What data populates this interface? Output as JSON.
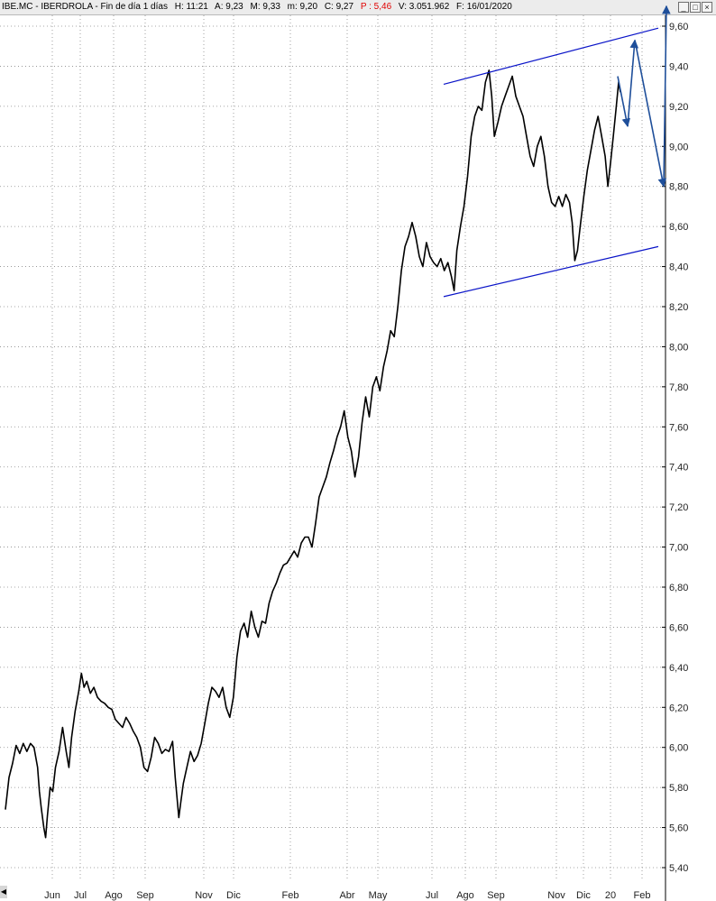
{
  "header": {
    "symbol": "IBE.MC - IBERDROLA - Fin de día 1 días",
    "high": "H: 11:21",
    "open": "A: 9,23",
    "max": "M: 9,33",
    "min": "m: 9,20",
    "close": "C: 9,27",
    "pct": "P : 5,46",
    "volume": "V: 3.051.962",
    "date": "F: 16/01/2020",
    "pct_color": "#e00000"
  },
  "window_buttons": {
    "minimize": "_",
    "restore": "□",
    "close": "×"
  },
  "scroll_arrow": "◀",
  "chart_data": {
    "type": "line",
    "title": "",
    "xlabel": "",
    "ylabel": "",
    "ylim": [
      5.33,
      9.7
    ],
    "y_ticks": [
      "9,60",
      "9,40",
      "9,20",
      "9,00",
      "8,80",
      "8,60",
      "8,40",
      "8,20",
      "8,00",
      "7,80",
      "7,60",
      "7,40",
      "7,20",
      "7,00",
      "6,80",
      "6,60",
      "6,40",
      "6,20",
      "6,00",
      "5,80",
      "5,60",
      "5,40"
    ],
    "x_ticks": [
      "Jun",
      "Jul",
      "Ago",
      "Sep",
      "Nov",
      "Dic",
      "Feb",
      "Abr",
      "May",
      "Jul",
      "Ago",
      "Sep",
      "Nov",
      "Dic",
      "20",
      "Feb"
    ],
    "grid": true,
    "series": [
      {
        "values": [
          [
            0,
            5.69
          ],
          [
            4,
            5.85
          ],
          [
            8,
            5.92
          ],
          [
            12,
            6.01
          ],
          [
            16,
            5.97
          ],
          [
            20,
            6.02
          ],
          [
            24,
            5.98
          ],
          [
            28,
            6.02
          ],
          [
            32,
            6.0
          ],
          [
            36,
            5.9
          ],
          [
            38,
            5.78
          ],
          [
            40,
            5.7
          ],
          [
            43,
            5.6
          ],
          [
            45,
            5.55
          ],
          [
            47,
            5.66
          ],
          [
            50,
            5.8
          ],
          [
            53,
            5.78
          ],
          [
            56,
            5.9
          ],
          [
            60,
            5.98
          ],
          [
            64,
            6.1
          ],
          [
            68,
            5.98
          ],
          [
            71,
            5.9
          ],
          [
            74,
            6.05
          ],
          [
            78,
            6.18
          ],
          [
            82,
            6.28
          ],
          [
            85,
            6.37
          ],
          [
            88,
            6.3
          ],
          [
            91,
            6.33
          ],
          [
            95,
            6.27
          ],
          [
            99,
            6.3
          ],
          [
            103,
            6.25
          ],
          [
            107,
            6.23
          ],
          [
            111,
            6.22
          ],
          [
            115,
            6.2
          ],
          [
            119,
            6.19
          ],
          [
            123,
            6.14
          ],
          [
            127,
            6.12
          ],
          [
            131,
            6.1
          ],
          [
            135,
            6.15
          ],
          [
            139,
            6.12
          ],
          [
            143,
            6.08
          ],
          [
            147,
            6.05
          ],
          [
            151,
            6.0
          ],
          [
            155,
            5.9
          ],
          [
            159,
            5.88
          ],
          [
            163,
            5.95
          ],
          [
            167,
            6.05
          ],
          [
            171,
            6.02
          ],
          [
            175,
            5.97
          ],
          [
            179,
            5.99
          ],
          [
            183,
            5.98
          ],
          [
            187,
            6.03
          ],
          [
            190,
            5.85
          ],
          [
            192,
            5.75
          ],
          [
            194,
            5.65
          ],
          [
            196,
            5.72
          ],
          [
            199,
            5.82
          ],
          [
            203,
            5.9
          ],
          [
            207,
            5.98
          ],
          [
            211,
            5.93
          ],
          [
            215,
            5.96
          ],
          [
            219,
            6.02
          ],
          [
            223,
            6.12
          ],
          [
            227,
            6.22
          ],
          [
            231,
            6.3
          ],
          [
            235,
            6.28
          ],
          [
            239,
            6.25
          ],
          [
            243,
            6.3
          ],
          [
            247,
            6.2
          ],
          [
            251,
            6.15
          ],
          [
            255,
            6.25
          ],
          [
            259,
            6.45
          ],
          [
            263,
            6.58
          ],
          [
            267,
            6.62
          ],
          [
            271,
            6.55
          ],
          [
            275,
            6.68
          ],
          [
            279,
            6.6
          ],
          [
            283,
            6.55
          ],
          [
            287,
            6.63
          ],
          [
            291,
            6.62
          ],
          [
            295,
            6.72
          ],
          [
            299,
            6.78
          ],
          [
            303,
            6.82
          ],
          [
            307,
            6.87
          ],
          [
            311,
            6.91
          ],
          [
            315,
            6.92
          ],
          [
            319,
            6.95
          ],
          [
            323,
            6.98
          ],
          [
            327,
            6.95
          ],
          [
            331,
            7.02
          ],
          [
            335,
            7.05
          ],
          [
            339,
            7.05
          ],
          [
            343,
            7.0
          ],
          [
            347,
            7.12
          ],
          [
            351,
            7.25
          ],
          [
            355,
            7.3
          ],
          [
            359,
            7.35
          ],
          [
            363,
            7.42
          ],
          [
            367,
            7.48
          ],
          [
            371,
            7.55
          ],
          [
            375,
            7.6
          ],
          [
            379,
            7.68
          ],
          [
            383,
            7.55
          ],
          [
            387,
            7.48
          ],
          [
            391,
            7.35
          ],
          [
            395,
            7.45
          ],
          [
            399,
            7.62
          ],
          [
            403,
            7.75
          ],
          [
            407,
            7.65
          ],
          [
            411,
            7.8
          ],
          [
            415,
            7.85
          ],
          [
            419,
            7.78
          ],
          [
            423,
            7.9
          ],
          [
            427,
            7.98
          ],
          [
            431,
            8.08
          ],
          [
            435,
            8.05
          ],
          [
            439,
            8.2
          ],
          [
            443,
            8.38
          ],
          [
            447,
            8.5
          ],
          [
            451,
            8.55
          ],
          [
            455,
            8.62
          ],
          [
            459,
            8.55
          ],
          [
            463,
            8.45
          ],
          [
            467,
            8.4
          ],
          [
            471,
            8.52
          ],
          [
            475,
            8.45
          ],
          [
            479,
            8.42
          ],
          [
            483,
            8.4
          ],
          [
            487,
            8.44
          ],
          [
            491,
            8.38
          ],
          [
            495,
            8.42
          ],
          [
            499,
            8.35
          ],
          [
            502,
            8.28
          ],
          [
            505,
            8.48
          ],
          [
            509,
            8.6
          ],
          [
            513,
            8.7
          ],
          [
            517,
            8.85
          ],
          [
            521,
            9.05
          ],
          [
            525,
            9.15
          ],
          [
            529,
            9.2
          ],
          [
            533,
            9.18
          ],
          [
            537,
            9.32
          ],
          [
            541,
            9.38
          ],
          [
            544,
            9.25
          ],
          [
            547,
            9.05
          ],
          [
            551,
            9.12
          ],
          [
            555,
            9.2
          ],
          [
            559,
            9.25
          ],
          [
            563,
            9.3
          ],
          [
            567,
            9.35
          ],
          [
            571,
            9.25
          ],
          [
            575,
            9.2
          ],
          [
            579,
            9.15
          ],
          [
            583,
            9.05
          ],
          [
            587,
            8.95
          ],
          [
            591,
            8.9
          ],
          [
            595,
            9.0
          ],
          [
            599,
            9.05
          ],
          [
            603,
            8.95
          ],
          [
            607,
            8.8
          ],
          [
            611,
            8.72
          ],
          [
            615,
            8.7
          ],
          [
            619,
            8.75
          ],
          [
            623,
            8.7
          ],
          [
            627,
            8.76
          ],
          [
            631,
            8.72
          ],
          [
            634,
            8.62
          ],
          [
            637,
            8.43
          ],
          [
            640,
            8.48
          ],
          [
            643,
            8.6
          ],
          [
            647,
            8.75
          ],
          [
            651,
            8.88
          ],
          [
            655,
            8.98
          ],
          [
            659,
            9.08
          ],
          [
            663,
            9.15
          ],
          [
            667,
            9.05
          ],
          [
            671,
            8.95
          ],
          [
            674,
            8.8
          ],
          [
            677,
            8.92
          ],
          [
            680,
            9.05
          ],
          [
            683,
            9.18
          ],
          [
            686,
            9.32
          ],
          [
            688,
            9.27
          ]
        ]
      }
    ],
    "annotations": {
      "channel_upper": [
        [
          "Jul",
          9.31
        ],
        [
          "Feb",
          9.59
        ]
      ],
      "channel_lower": [
        [
          "Jul",
          8.25
        ],
        [
          "Feb",
          8.5
        ]
      ],
      "projection": [
        9.35,
        9.1,
        9.53,
        8.8,
        9.7
      ]
    }
  }
}
